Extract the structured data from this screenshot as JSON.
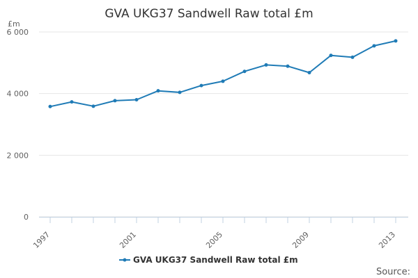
{
  "chart_data": {
    "type": "line",
    "title": "GVA UKG37 Sandwell Raw total £m",
    "ylabel": "£m",
    "xlabel": "",
    "ylim": [
      0,
      6000
    ],
    "yticks": [
      0,
      2000,
      4000,
      6000
    ],
    "ytick_labels": [
      "0",
      "2 000",
      "4 000",
      "6 000"
    ],
    "xlim": [
      1997,
      2013
    ],
    "xticks": [
      1997,
      2001,
      2005,
      2009,
      2013
    ],
    "xtick_labels": [
      "1997",
      "2001",
      "2005",
      "2009",
      "2013"
    ],
    "grid": true,
    "legend": "bottom",
    "series": [
      {
        "name": "GVA UKG37 Sandwell Raw total £m",
        "color": "#1f7bb6",
        "x": [
          1997,
          1998,
          1999,
          2000,
          2001,
          2002,
          2003,
          2004,
          2005,
          2006,
          2007,
          2008,
          2009,
          2010,
          2011,
          2012,
          2013
        ],
        "values": [
          3580,
          3730,
          3590,
          3770,
          3800,
          4090,
          4040,
          4260,
          4400,
          4720,
          4930,
          4890,
          4680,
          5240,
          5180,
          5550,
          5710
        ]
      }
    ]
  },
  "credit": "Source:"
}
